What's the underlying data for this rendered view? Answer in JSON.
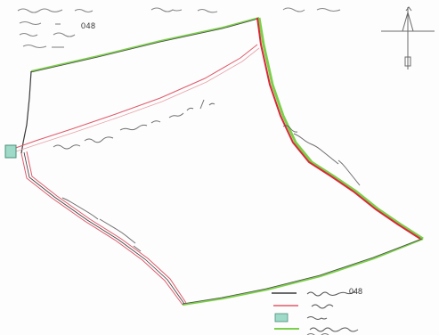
{
  "header": {
    "visible_code": "048"
  },
  "legend": {
    "plot_code": "048",
    "colors": {
      "boundary": "#3a3a3a",
      "road": "#e05a6a",
      "plot_fill": "#9fd9c8",
      "ward_boundary": "#7ccf4a"
    }
  },
  "icons": {
    "north_arrow": "north-arrow-icon",
    "plot_marker": "plot-square-icon"
  }
}
